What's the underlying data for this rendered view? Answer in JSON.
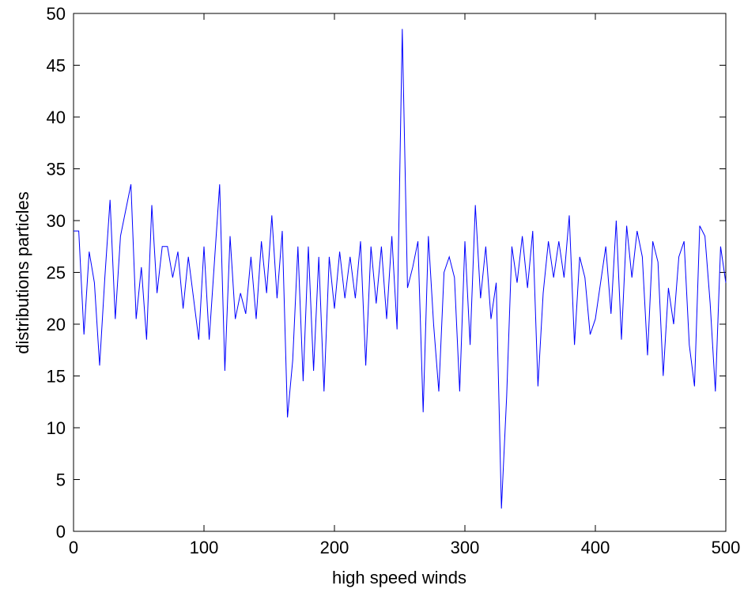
{
  "chart_data": {
    "type": "line",
    "xlabel": "high speed winds",
    "ylabel": "distributions particles",
    "x": [
      0,
      4,
      8,
      12,
      16,
      20,
      24,
      28,
      32,
      36,
      40,
      44,
      48,
      52,
      56,
      60,
      64,
      68,
      72,
      76,
      80,
      84,
      88,
      92,
      96,
      100,
      104,
      108,
      112,
      116,
      120,
      124,
      128,
      132,
      136,
      140,
      144,
      148,
      152,
      156,
      160,
      164,
      168,
      172,
      176,
      180,
      184,
      188,
      192,
      196,
      200,
      204,
      208,
      212,
      216,
      220,
      224,
      228,
      232,
      236,
      240,
      244,
      248,
      252,
      256,
      260,
      264,
      268,
      272,
      276,
      280,
      284,
      288,
      292,
      296,
      300,
      304,
      308,
      312,
      316,
      320,
      324,
      328,
      332,
      336,
      340,
      344,
      348,
      352,
      356,
      360,
      364,
      368,
      372,
      376,
      380,
      384,
      388,
      392,
      396,
      400,
      404,
      408,
      412,
      416,
      420,
      424,
      428,
      432,
      436,
      440,
      444,
      448,
      452,
      456,
      460,
      464,
      468,
      472,
      476,
      480,
      484,
      488,
      492,
      496,
      500
    ],
    "series": [
      {
        "color": "#0000ff",
        "values": [
          29,
          29,
          19,
          27,
          24,
          16,
          24.5,
          32,
          20.5,
          28.5,
          31,
          33.5,
          20.5,
          25.5,
          18.5,
          31.5,
          23,
          27.5,
          27.5,
          24.5,
          27,
          21.5,
          26.5,
          22.5,
          18.5,
          27.5,
          18.5,
          26,
          33.5,
          15.5,
          28.5,
          20.5,
          23,
          21,
          26.5,
          20.5,
          28,
          23,
          30.5,
          22.5,
          29,
          11,
          16.5,
          27.5,
          14.5,
          27.5,
          15.5,
          26.5,
          13.5,
          26.5,
          21.5,
          27,
          22.5,
          26.5,
          22.5,
          28,
          16,
          27.5,
          22,
          27.5,
          20.5,
          28.5,
          19.5,
          48.5,
          23.5,
          25.5,
          28,
          11.5,
          28.5,
          20,
          13.5,
          25,
          26.5,
          24.5,
          13.5,
          28,
          18,
          31.5,
          22.5,
          27.5,
          20.5,
          24,
          2.2,
          13,
          27.5,
          24,
          28.5,
          23.5,
          29,
          14,
          23,
          28,
          24.5,
          28,
          24.5,
          30.5,
          18,
          26.5,
          24.5,
          19,
          20.5,
          24,
          27.5,
          21,
          30,
          18.5,
          29.5,
          24.5,
          29,
          26.5,
          17,
          28,
          26,
          15,
          23.5,
          20,
          26.5,
          28,
          18,
          14,
          29.5,
          28.5,
          22,
          13.5,
          27.5,
          24
        ]
      }
    ],
    "xlim": [
      0,
      500
    ],
    "ylim": [
      0,
      50
    ],
    "xticks": [
      0,
      100,
      200,
      300,
      400,
      500
    ],
    "yticks": [
      0,
      5,
      10,
      15,
      20,
      25,
      30,
      35,
      40,
      45,
      50
    ]
  }
}
